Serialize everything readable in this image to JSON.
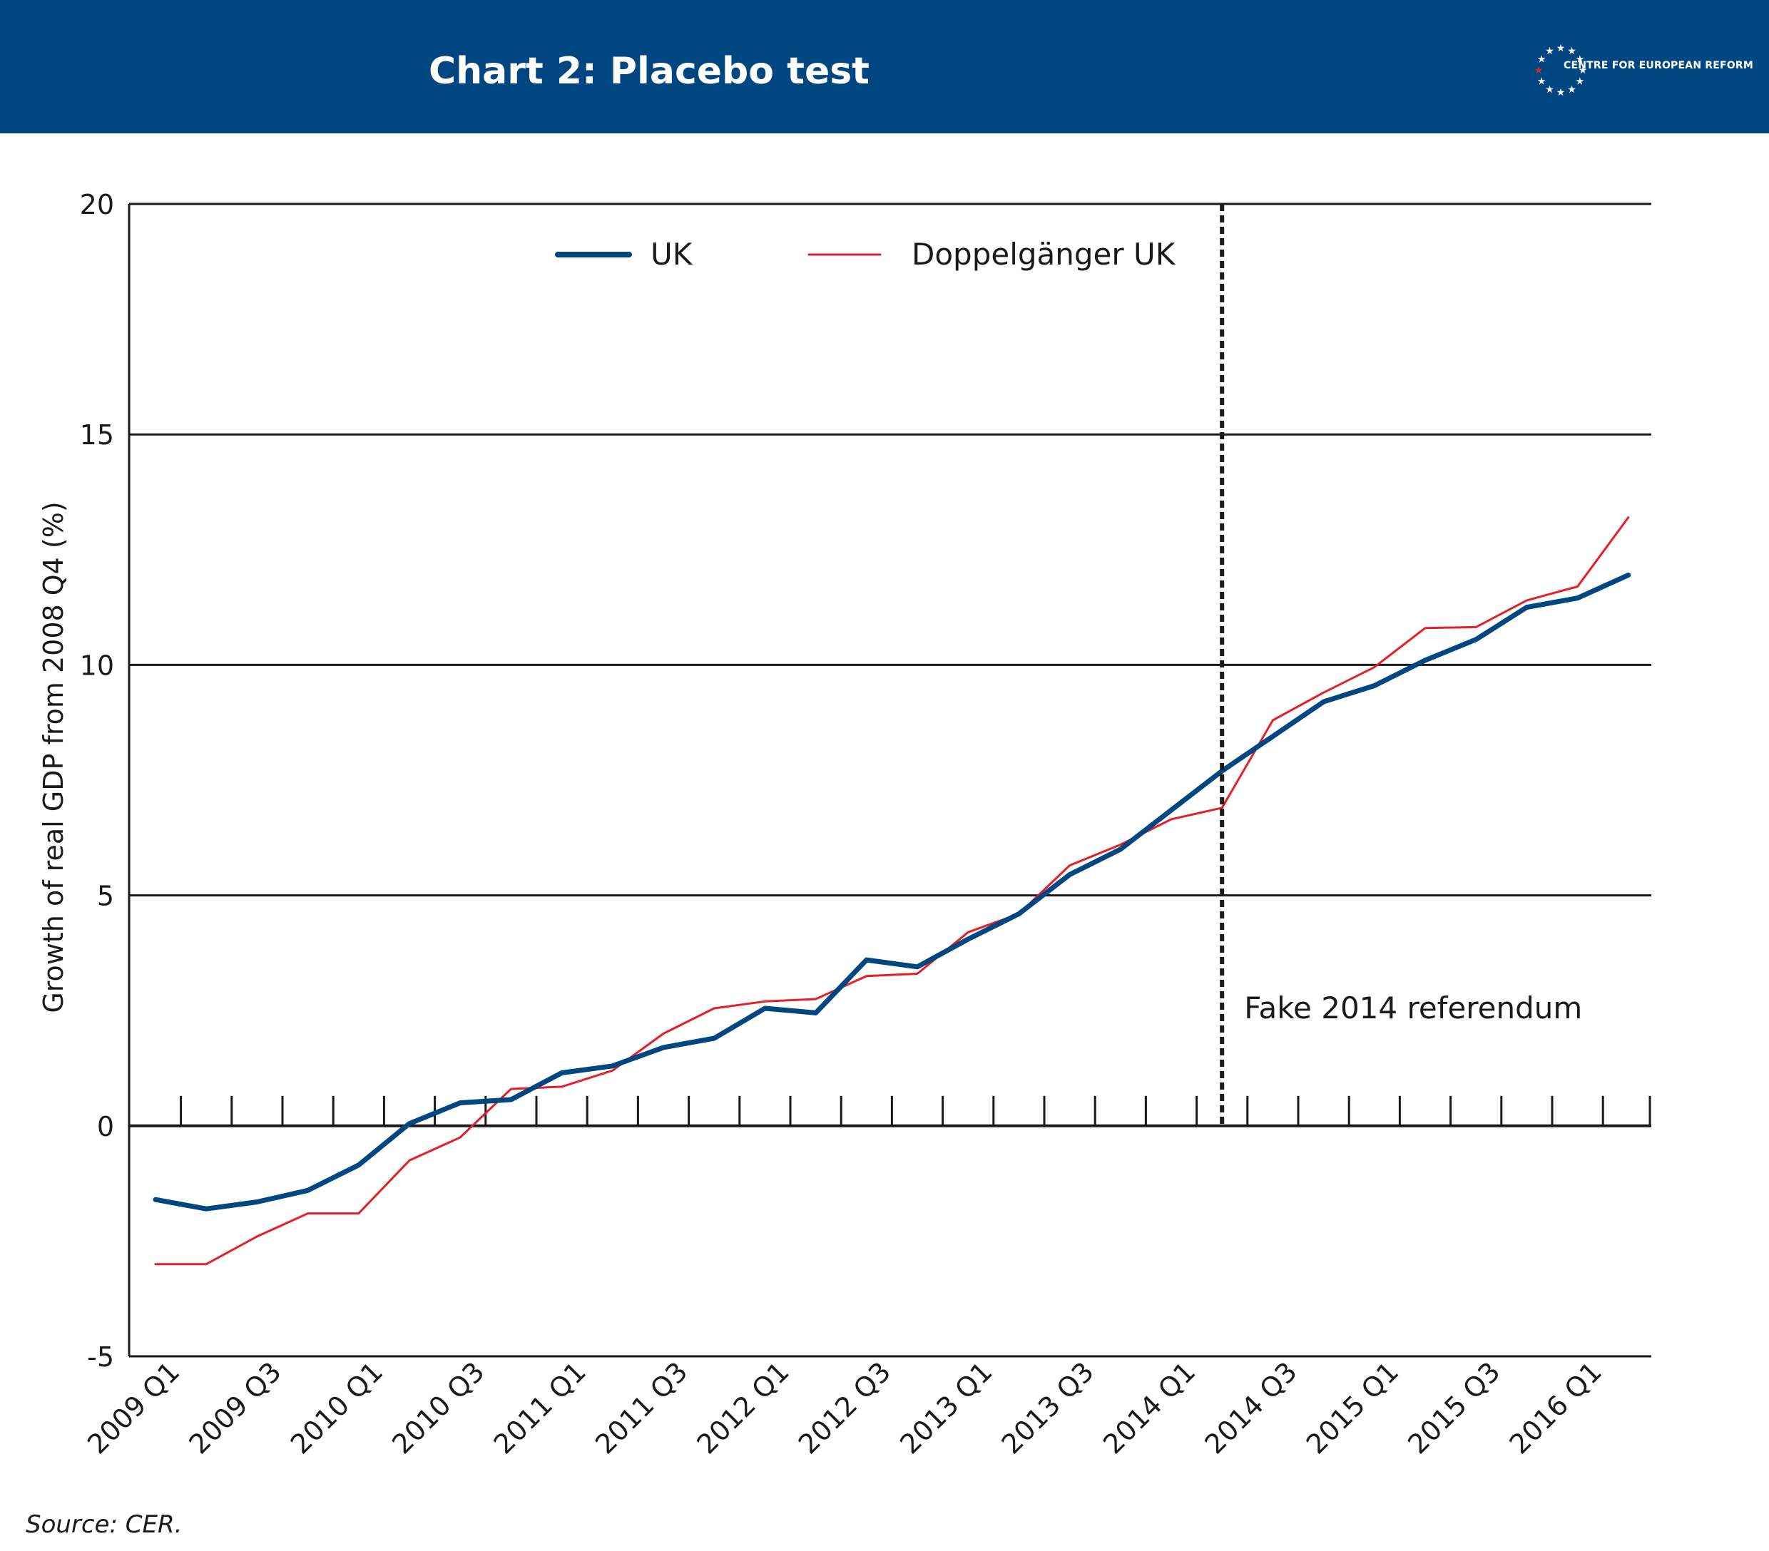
{
  "header": {
    "title": "Chart 2: Placebo test",
    "logo_text": "CENTRE FOR EUROPEAN REFORM",
    "background_color": "#004781"
  },
  "source": "Source: CER.",
  "chart_data": {
    "type": "line",
    "title": "Chart 2: Placebo test",
    "xlabel": "",
    "ylabel": "Growth of real GDP from 2008 Q4 (%)",
    "ylim": [
      -5,
      20
    ],
    "yticks": [
      -5,
      0,
      5,
      10,
      15,
      20
    ],
    "grid": "horizontal",
    "legend_position": "top",
    "x": [
      "2009 Q1",
      "2009 Q2",
      "2009 Q3",
      "2009 Q4",
      "2010 Q1",
      "2010 Q2",
      "2010 Q3",
      "2010 Q4",
      "2011 Q1",
      "2011 Q2",
      "2011 Q3",
      "2011 Q4",
      "2012 Q1",
      "2012 Q2",
      "2012 Q3",
      "2012 Q4",
      "2013 Q1",
      "2013 Q2",
      "2013 Q3",
      "2013 Q4",
      "2014 Q1",
      "2014 Q2",
      "2014 Q3",
      "2014 Q4",
      "2015 Q1",
      "2015 Q2",
      "2015 Q3",
      "2015 Q4",
      "2016 Q1",
      "2016 Q2"
    ],
    "x_tick_labels": [
      "2009 Q1",
      "2009 Q3",
      "2010 Q1",
      "2010 Q3",
      "2011 Q1",
      "2011 Q3",
      "2012 Q1",
      "2012 Q3",
      "2013 Q1",
      "2013 Q3",
      "2014 Q1",
      "2014 Q3",
      "2015 Q1",
      "2015 Q3",
      "2016 Q1"
    ],
    "series": [
      {
        "name": "UK",
        "color": "#004781",
        "values": [
          -1.6,
          -1.8,
          -1.65,
          -1.4,
          -0.85,
          0.05,
          0.5,
          0.57,
          1.15,
          1.3,
          1.7,
          1.9,
          2.55,
          2.45,
          3.6,
          3.45,
          4.05,
          4.6,
          5.45,
          6.0,
          6.85,
          7.7,
          8.45,
          9.2,
          9.55,
          10.1,
          10.55,
          11.25,
          11.45,
          11.95
        ]
      },
      {
        "name": "Doppelgänger UK",
        "color": "#e32028",
        "values": [
          -3.0,
          -3.0,
          -2.4,
          -1.9,
          -1.9,
          -0.75,
          -0.25,
          0.8,
          0.85,
          1.2,
          2.0,
          2.55,
          2.7,
          2.75,
          3.25,
          3.3,
          4.2,
          4.6,
          5.65,
          6.1,
          6.65,
          6.9,
          8.8,
          9.4,
          9.95,
          10.8,
          10.82,
          11.4,
          11.7,
          13.2
        ]
      }
    ],
    "annotation": {
      "text": "Fake 2014 referendum",
      "x": "2014 Q2"
    }
  }
}
